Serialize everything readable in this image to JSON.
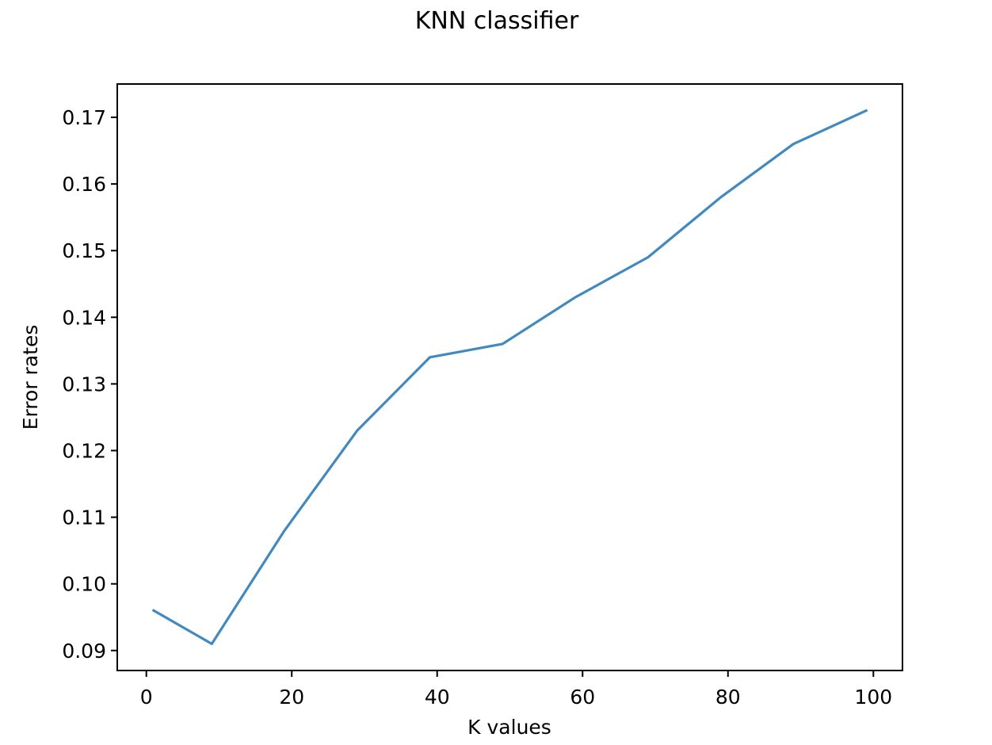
{
  "chart_data": {
    "type": "line",
    "title": "KNN classifier",
    "xlabel": "K values",
    "ylabel": "Error rates",
    "xlim": [
      -4,
      104
    ],
    "ylim": [
      0.087,
      0.175
    ],
    "xticks": [
      0,
      20,
      40,
      60,
      80,
      100
    ],
    "xtick_labels": [
      "0",
      "20",
      "40",
      "60",
      "80",
      "100"
    ],
    "yticks": [
      0.09,
      0.1,
      0.11,
      0.12,
      0.13,
      0.14,
      0.15,
      0.16,
      0.17
    ],
    "ytick_labels": [
      "0.09",
      "0.10",
      "0.11",
      "0.12",
      "0.13",
      "0.14",
      "0.15",
      "0.16",
      "0.17"
    ],
    "grid": false,
    "legend": false,
    "series": [
      {
        "color": "#4189bf",
        "x": [
          1,
          9,
          19,
          29,
          39,
          49,
          59,
          69,
          79,
          89,
          99
        ],
        "y": [
          0.096,
          0.091,
          0.108,
          0.123,
          0.134,
          0.136,
          0.143,
          0.149,
          0.158,
          0.166,
          0.171
        ]
      }
    ]
  }
}
